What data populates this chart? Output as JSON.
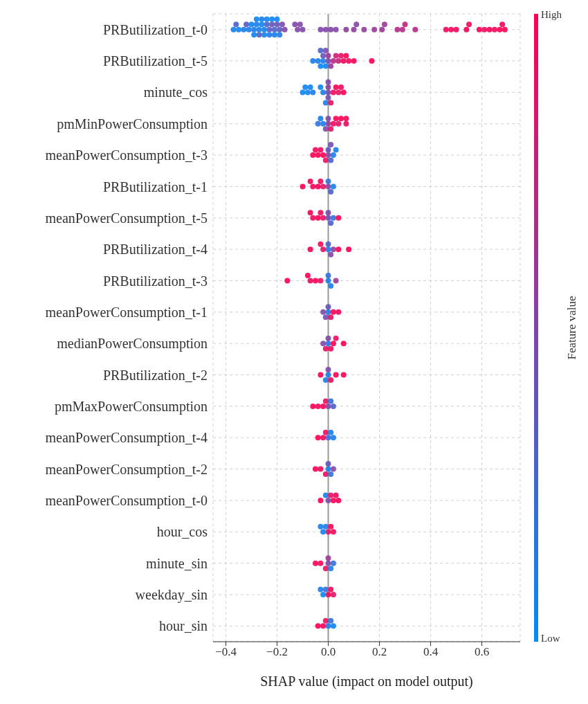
{
  "chart_data": {
    "type": "scatter",
    "orientation": "horizontal",
    "categories": [
      "PRButilization_t-0",
      "PRButilization_t-5",
      "minute_cos",
      "pmMinPowerConsumption",
      "meanPowerConsumption_t-3",
      "PRButilization_t-1",
      "meanPowerConsumption_t-5",
      "PRButilization_t-4",
      "PRButilization_t-3",
      "meanPowerConsumption_t-1",
      "medianPowerConsumption",
      "PRButilization_t-2",
      "pmMaxPowerConsumption",
      "meanPowerConsumption_t-4",
      "meanPowerConsumption_t-2",
      "meanPowerConsumption_t-0",
      "hour_cos",
      "minute_sin",
      "weekday_sin",
      "hour_sin"
    ],
    "xlabel": "SHAP value (impact on model output)",
    "clabel": "Feature value",
    "clim": [
      0,
      1
    ],
    "cticks": [
      {
        "value": 0,
        "label": "Low"
      },
      {
        "value": 1,
        "label": "High"
      }
    ],
    "colors": [
      "#008bfb",
      "#ff0052"
    ],
    "xlim": [
      -0.45,
      0.75
    ],
    "xticks": [
      {
        "value": -0.4,
        "label": "−0.4"
      },
      {
        "value": -0.2,
        "label": "−0.2"
      },
      {
        "value": 0,
        "label": "0.0"
      },
      {
        "value": 0.2,
        "label": "0.2"
      },
      {
        "value": 0.4,
        "label": "0.4"
      },
      {
        "value": 0.6,
        "label": "0.6"
      }
    ],
    "grid": true,
    "marker": "circle",
    "ref_lines": [
      {
        "axis": "x",
        "value": 0,
        "color": "#999999"
      }
    ],
    "series": [
      {
        "x": [
          "PRButilization_t-0",
          "PRButilization_t-0",
          "PRButilization_t-0",
          "PRButilization_t-0",
          "PRButilization_t-0",
          "PRButilization_t-0",
          "PRButilization_t-0",
          "PRButilization_t-0",
          "PRButilization_t-0",
          "PRButilization_t-0",
          "PRButilization_t-0",
          "PRButilization_t-0",
          "PRButilization_t-0",
          "PRButilization_t-0",
          "PRButilization_t-0",
          "PRButilization_t-0",
          "PRButilization_t-0",
          "PRButilization_t-0",
          "PRButilization_t-0",
          "PRButilization_t-0",
          "PRButilization_t-0",
          "PRButilization_t-0",
          "PRButilization_t-0",
          "PRButilization_t-0",
          "PRButilization_t-0",
          "PRButilization_t-0",
          "PRButilization_t-0",
          "PRButilization_t-0",
          "PRButilization_t-0",
          "PRButilization_t-0",
          "PRButilization_t-0",
          "PRButilization_t-0",
          "PRButilization_t-0",
          "PRButilization_t-0",
          "PRButilization_t-0",
          "PRButilization_t-0",
          "PRButilization_t-0",
          "PRButilization_t-0",
          "PRButilization_t-0",
          "PRButilization_t-0",
          "PRButilization_t-0",
          "PRButilization_t-0",
          "PRButilization_t-0",
          "PRButilization_t-0",
          "PRButilization_t-0",
          "PRButilization_t-0",
          "PRButilization_t-0",
          "PRButilization_t-0",
          "PRButilization_t-0",
          "PRButilization_t-0",
          "PRButilization_t-0",
          "PRButilization_t-0",
          "PRButilization_t-0",
          "PRButilization_t-0",
          "PRButilization_t-0",
          "PRButilization_t-0",
          "PRButilization_t-0",
          "PRButilization_t-0",
          "PRButilization_t-0",
          "PRButilization_t-0",
          "PRButilization_t-0",
          "PRButilization_t-0"
        ],
        "values": [
          -0.37,
          -0.36,
          -0.35,
          -0.33,
          -0.32,
          -0.31,
          -0.3,
          -0.29,
          -0.29,
          -0.28,
          -0.28,
          -0.27,
          -0.27,
          -0.26,
          -0.26,
          -0.25,
          -0.25,
          -0.24,
          -0.24,
          -0.23,
          -0.23,
          -0.22,
          -0.22,
          -0.21,
          -0.21,
          -0.2,
          -0.2,
          -0.19,
          -0.19,
          -0.18,
          -0.17,
          -0.13,
          -0.12,
          -0.11,
          -0.1,
          -0.03,
          -0.01,
          0.01,
          0.03,
          0.07,
          0.1,
          0.11,
          0.14,
          0.18,
          0.21,
          0.22,
          0.27,
          0.29,
          0.3,
          0.34,
          0.46,
          0.48,
          0.5,
          0.54,
          0.55,
          0.59,
          0.61,
          0.63,
          0.65,
          0.67,
          0.68,
          0.69
        ],
        "colors": [
          "#1a7dea",
          "#4d61c8",
          "#0d84f3",
          "#1a7dea",
          "#595ac0",
          "#1a7dea",
          "#0d84f3",
          "#1a7dea",
          "#0d84f3",
          "#1a7dea",
          "#0d84f3",
          "#1a7dea",
          "#4d61c8",
          "#0d84f3",
          "#1a7dea",
          "#0d84f3",
          "#1a7dea",
          "#4d61c8",
          "#0d84f3",
          "#595ac0",
          "#1a7dea",
          "#6653b7",
          "#0d84f3",
          "#4d61c8",
          "#1a7dea",
          "#6653b7",
          "#0d84f3",
          "#595ac0",
          "#1a7dea",
          "#734caf",
          "#8046a7",
          "#8046a7",
          "#8046a7",
          "#8046a7",
          "#8046a7",
          "#8046a7",
          "#8046a7",
          "#8046a7",
          "#8046a7",
          "#8c3f9e",
          "#8c3f9e",
          "#8046a7",
          "#8c3f9e",
          "#993896",
          "#993896",
          "#993896",
          "#b32a85",
          "#b32a85",
          "#bf237c",
          "#b32a85",
          "#f2075a",
          "#f2075a",
          "#f2075a",
          "#ff0052",
          "#f2075a",
          "#ff0052",
          "#f2075a",
          "#ff0052",
          "#f2075a",
          "#ff0052",
          "#f2075a",
          "#ff0052"
        ]
      },
      {
        "x": [
          "PRButilization_t-5",
          "PRButilization_t-5",
          "PRButilization_t-5",
          "PRButilization_t-5",
          "PRButilization_t-5",
          "PRButilization_t-5",
          "PRButilization_t-5",
          "PRButilization_t-5",
          "PRButilization_t-5",
          "PRButilization_t-5",
          "PRButilization_t-5",
          "PRButilization_t-5",
          "PRButilization_t-5",
          "PRButilization_t-5",
          "PRButilization_t-5",
          "PRButilization_t-5",
          "PRButilization_t-5",
          "PRButilization_t-5",
          "PRButilization_t-5",
          "PRButilization_t-5"
        ],
        "values": [
          -0.06,
          -0.04,
          -0.03,
          -0.03,
          -0.02,
          -0.02,
          -0.01,
          -0.01,
          0,
          0,
          0.01,
          0.02,
          0.03,
          0.04,
          0.05,
          0.06,
          0.07,
          0.08,
          0.1,
          0.17
        ],
        "colors": [
          "#1a7dea",
          "#1a7dea",
          "#0d84f3",
          "#4d61c8",
          "#1a7dea",
          "#6653b7",
          "#0d84f3",
          "#734caf",
          "#8046a7",
          "#993896",
          "#993896",
          "#b32a85",
          "#cc1c74",
          "#cc1c74",
          "#e60e63",
          "#f2075a",
          "#ff0052",
          "#f2075a",
          "#ff0052",
          "#ff0052"
        ]
      },
      {
        "x": [
          "minute_cos",
          "minute_cos",
          "minute_cos",
          "minute_cos",
          "minute_cos",
          "minute_cos",
          "minute_cos",
          "minute_cos",
          "minute_cos",
          "minute_cos",
          "minute_cos",
          "minute_cos",
          "minute_cos",
          "minute_cos",
          "minute_cos",
          "minute_cos",
          "minute_cos",
          "minute_cos"
        ],
        "values": [
          -0.1,
          -0.09,
          -0.08,
          -0.07,
          -0.06,
          -0.03,
          -0.02,
          -0.01,
          0,
          0,
          0,
          0,
          0.01,
          0.02,
          0.03,
          0.04,
          0.05,
          0.06
        ],
        "colors": [
          "#0d84f3",
          "#0d84f3",
          "#0d84f3",
          "#0d84f3",
          "#1a7dea",
          "#0d84f3",
          "#1a7dea",
          "#1a7dea",
          "#8046a7",
          "#8c3f9e",
          "#734caf",
          "#8046a7",
          "#e60e63",
          "#f2075a",
          "#ff0052",
          "#e60e63",
          "#f2075a",
          "#ff0052"
        ]
      },
      {
        "x": [
          "pmMinPowerConsumption",
          "pmMinPowerConsumption",
          "pmMinPowerConsumption",
          "pmMinPowerConsumption",
          "pmMinPowerConsumption",
          "pmMinPowerConsumption",
          "pmMinPowerConsumption",
          "pmMinPowerConsumption",
          "pmMinPowerConsumption",
          "pmMinPowerConsumption",
          "pmMinPowerConsumption",
          "pmMinPowerConsumption",
          "pmMinPowerConsumption"
        ],
        "values": [
          -0.04,
          -0.03,
          -0.02,
          -0.01,
          0,
          0.01,
          0.02,
          0.03,
          0.04,
          0.05,
          0.07,
          0.07,
          0
        ],
        "colors": [
          "#336fd9",
          "#1a7dea",
          "#1a7dea",
          "#8046a7",
          "#993896",
          "#e60e63",
          "#f2075a",
          "#ff0052",
          "#e60e63",
          "#ff0052",
          "#f2075a",
          "#ff0052",
          "#8046a7"
        ]
      },
      {
        "x": [
          "meanPowerConsumption_t-3",
          "meanPowerConsumption_t-3",
          "meanPowerConsumption_t-3",
          "meanPowerConsumption_t-3",
          "meanPowerConsumption_t-3",
          "meanPowerConsumption_t-3",
          "meanPowerConsumption_t-3",
          "meanPowerConsumption_t-3",
          "meanPowerConsumption_t-3",
          "meanPowerConsumption_t-3",
          "meanPowerConsumption_t-3",
          "meanPowerConsumption_t-3"
        ],
        "values": [
          -0.06,
          -0.05,
          -0.04,
          -0.03,
          -0.02,
          -0.01,
          0,
          0.01,
          0.02,
          0.03,
          0.01,
          0
        ],
        "colors": [
          "#ff0052",
          "#f2075a",
          "#ff0052",
          "#f2075a",
          "#ff0052",
          "#e60e63",
          "#8046a7",
          "#4d61c8",
          "#1a7dea",
          "#1a7dea",
          "#734caf",
          "#6653b7"
        ]
      },
      {
        "x": [
          "PRButilization_t-1",
          "PRButilization_t-1",
          "PRButilization_t-1",
          "PRButilization_t-1",
          "PRButilization_t-1",
          "PRButilization_t-1",
          "PRButilization_t-1",
          "PRButilization_t-1",
          "PRButilization_t-1",
          "PRButilization_t-1"
        ],
        "values": [
          -0.1,
          -0.07,
          -0.06,
          -0.04,
          -0.03,
          -0.02,
          0,
          0.01,
          0.02,
          0
        ],
        "colors": [
          "#ff0052",
          "#ff0052",
          "#f2075a",
          "#ff0052",
          "#f2075a",
          "#e60e63",
          "#8046a7",
          "#4d61c8",
          "#1a7dea",
          "#336fd9"
        ]
      },
      {
        "x": [
          "meanPowerConsumption_t-5",
          "meanPowerConsumption_t-5",
          "meanPowerConsumption_t-5",
          "meanPowerConsumption_t-5",
          "meanPowerConsumption_t-5",
          "meanPowerConsumption_t-5",
          "meanPowerConsumption_t-5",
          "meanPowerConsumption_t-5",
          "meanPowerConsumption_t-5",
          "meanPowerConsumption_t-5"
        ],
        "values": [
          -0.07,
          -0.06,
          -0.04,
          -0.03,
          -0.02,
          0,
          0.01,
          0.02,
          0.04,
          0
        ],
        "colors": [
          "#ff0052",
          "#f2075a",
          "#ff0052",
          "#f2075a",
          "#e60e63",
          "#6653b7",
          "#4d61c8",
          "#336fd9",
          "#ff0052",
          "#8046a7"
        ]
      },
      {
        "x": [
          "PRButilization_t-4",
          "PRButilization_t-4",
          "PRButilization_t-4",
          "PRButilization_t-4",
          "PRButilization_t-4",
          "PRButilization_t-4",
          "PRButilization_t-4",
          "PRButilization_t-4",
          "PRButilization_t-4"
        ],
        "values": [
          -0.07,
          -0.03,
          -0.02,
          0,
          0,
          0.01,
          0.02,
          0.04,
          0.08
        ],
        "colors": [
          "#ff0052",
          "#f2075a",
          "#e60e63",
          "#1a7dea",
          "#4d61c8",
          "#8046a7",
          "#8c3f9e",
          "#ff0052",
          "#ff0052"
        ]
      },
      {
        "x": [
          "PRButilization_t-3",
          "PRButilization_t-3",
          "PRButilization_t-3",
          "PRButilization_t-3",
          "PRButilization_t-3",
          "PRButilization_t-3",
          "PRButilization_t-3",
          "PRButilization_t-3",
          "PRButilization_t-3"
        ],
        "values": [
          -0.16,
          -0.08,
          -0.07,
          -0.05,
          -0.03,
          0,
          0,
          0.01,
          0.03
        ],
        "colors": [
          "#ff0052",
          "#ff0052",
          "#f2075a",
          "#ff0052",
          "#e60e63",
          "#1a7dea",
          "#336fd9",
          "#1a7dea",
          "#993896"
        ]
      },
      {
        "x": [
          "meanPowerConsumption_t-1",
          "meanPowerConsumption_t-1",
          "meanPowerConsumption_t-1",
          "meanPowerConsumption_t-1",
          "meanPowerConsumption_t-1",
          "meanPowerConsumption_t-1",
          "meanPowerConsumption_t-1"
        ],
        "values": [
          -0.02,
          -0.01,
          0,
          0,
          0.01,
          0.02,
          0.04
        ],
        "colors": [
          "#8046a7",
          "#734caf",
          "#1a7dea",
          "#6653b7",
          "#e60e63",
          "#ff0052",
          "#f2075a"
        ]
      },
      {
        "x": [
          "medianPowerConsumption",
          "medianPowerConsumption",
          "medianPowerConsumption",
          "medianPowerConsumption",
          "medianPowerConsumption",
          "medianPowerConsumption",
          "medianPowerConsumption",
          "medianPowerConsumption"
        ],
        "values": [
          -0.02,
          -0.01,
          0,
          0,
          0.01,
          0.02,
          0.03,
          0.06
        ],
        "colors": [
          "#8046a7",
          "#e60e63",
          "#1a7dea",
          "#8046a7",
          "#f2075a",
          "#ff0052",
          "#e60e63",
          "#ff0052"
        ]
      },
      {
        "x": [
          "PRButilization_t-2",
          "PRButilization_t-2",
          "PRButilization_t-2",
          "PRButilization_t-2",
          "PRButilization_t-2",
          "PRButilization_t-2",
          "PRButilization_t-2"
        ],
        "values": [
          -0.03,
          -0.01,
          0,
          0,
          0.01,
          0.03,
          0.06
        ],
        "colors": [
          "#ff0052",
          "#1a7dea",
          "#1a7dea",
          "#8046a7",
          "#f2075a",
          "#ff0052",
          "#ff0052"
        ]
      },
      {
        "x": [
          "pmMaxPowerConsumption",
          "pmMaxPowerConsumption",
          "pmMaxPowerConsumption",
          "pmMaxPowerConsumption",
          "pmMaxPowerConsumption",
          "pmMaxPowerConsumption",
          "pmMaxPowerConsumption"
        ],
        "values": [
          -0.06,
          -0.04,
          -0.02,
          -0.01,
          0,
          0.01,
          0.02
        ],
        "colors": [
          "#ff0052",
          "#f2075a",
          "#ff0052",
          "#e60e63",
          "#8046a7",
          "#336fd9",
          "#4d61c8"
        ]
      },
      {
        "x": [
          "meanPowerConsumption_t-4",
          "meanPowerConsumption_t-4",
          "meanPowerConsumption_t-4",
          "meanPowerConsumption_t-4",
          "meanPowerConsumption_t-4",
          "meanPowerConsumption_t-4"
        ],
        "values": [
          -0.04,
          -0.02,
          -0.01,
          0,
          0.01,
          0.02
        ],
        "colors": [
          "#ff0052",
          "#f2075a",
          "#e60e63",
          "#336fd9",
          "#1a7dea",
          "#1a7dea"
        ]
      },
      {
        "x": [
          "meanPowerConsumption_t-2",
          "meanPowerConsumption_t-2",
          "meanPowerConsumption_t-2",
          "meanPowerConsumption_t-2",
          "meanPowerConsumption_t-2",
          "meanPowerConsumption_t-2",
          "meanPowerConsumption_t-2"
        ],
        "values": [
          -0.05,
          -0.03,
          -0.01,
          0,
          0.01,
          0.02,
          0
        ],
        "colors": [
          "#ff0052",
          "#f2075a",
          "#e60e63",
          "#1a7dea",
          "#336fd9",
          "#8046a7",
          "#6653b7"
        ]
      },
      {
        "x": [
          "meanPowerConsumption_t-0",
          "meanPowerConsumption_t-0",
          "meanPowerConsumption_t-0",
          "meanPowerConsumption_t-0",
          "meanPowerConsumption_t-0",
          "meanPowerConsumption_t-0",
          "meanPowerConsumption_t-0"
        ],
        "values": [
          -0.03,
          -0.01,
          0,
          0.01,
          0.02,
          0.03,
          0.04
        ],
        "colors": [
          "#ff0052",
          "#1a7dea",
          "#8046a7",
          "#e60e63",
          "#ff0052",
          "#f2075a",
          "#ff0052"
        ]
      },
      {
        "x": [
          "hour_cos",
          "hour_cos",
          "hour_cos",
          "hour_cos",
          "hour_cos",
          "hour_cos"
        ],
        "values": [
          -0.03,
          -0.02,
          -0.01,
          0,
          0.01,
          0.02
        ],
        "colors": [
          "#1a7dea",
          "#0d84f3",
          "#1a7dea",
          "#e60e63",
          "#ff0052",
          "#f2075a"
        ]
      },
      {
        "x": [
          "minute_sin",
          "minute_sin",
          "minute_sin",
          "minute_sin",
          "minute_sin",
          "minute_sin",
          "minute_sin"
        ],
        "values": [
          -0.05,
          -0.03,
          -0.01,
          0,
          0,
          0.01,
          0.02
        ],
        "colors": [
          "#ff0052",
          "#f2075a",
          "#e60e63",
          "#8046a7",
          "#993896",
          "#1a7dea",
          "#336fd9"
        ]
      },
      {
        "x": [
          "weekday_sin",
          "weekday_sin",
          "weekday_sin",
          "weekday_sin",
          "weekday_sin",
          "weekday_sin"
        ],
        "values": [
          -0.03,
          -0.02,
          -0.01,
          0,
          0.01,
          0.02
        ],
        "colors": [
          "#1a7dea",
          "#0d84f3",
          "#336fd9",
          "#ff0052",
          "#f2075a",
          "#e60e63"
        ]
      },
      {
        "x": [
          "hour_sin",
          "hour_sin",
          "hour_sin",
          "hour_sin",
          "hour_sin",
          "hour_sin"
        ],
        "values": [
          -0.04,
          -0.02,
          -0.01,
          0,
          0.01,
          0.02
        ],
        "colors": [
          "#ff0052",
          "#f2075a",
          "#e60e63",
          "#1a7dea",
          "#336fd9",
          "#0d84f3"
        ]
      }
    ]
  }
}
